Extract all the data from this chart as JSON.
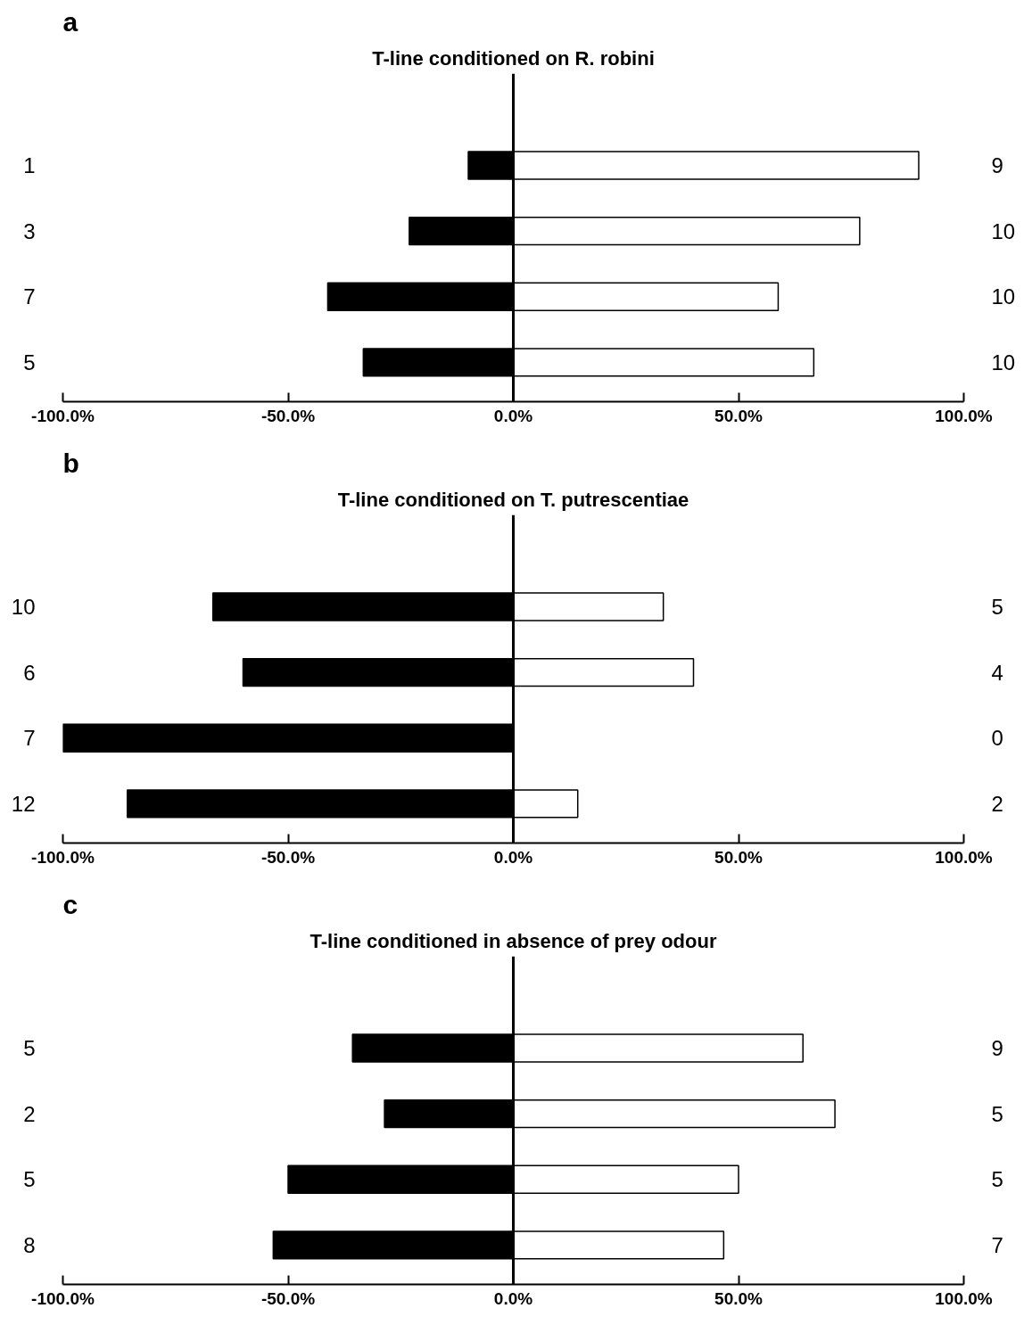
{
  "chart_data": [
    {
      "type": "bar",
      "orientation": "horizontal",
      "stacked": true,
      "title": "T-line conditioned on R. robini",
      "annotations": [
        "a",
        "9",
        "10",
        "10",
        "10"
      ],
      "categories": [
        "1",
        "3",
        "7",
        "5"
      ],
      "series": [
        {
          "color": "#000000",
          "values": [
            -10.0,
            -23.1,
            -41.2,
            -33.3
          ]
        },
        {
          "color": "#ffffff",
          "values": [
            90.0,
            76.9,
            58.8,
            66.7
          ]
        }
      ],
      "xlim": [
        -100,
        100
      ],
      "xticks": [
        {
          "value": -100,
          "label": "-100.0%"
        },
        {
          "value": -50,
          "label": "-50.0%"
        },
        {
          "value": 0,
          "label": "0.0%"
        },
        {
          "value": 50,
          "label": "50.0%"
        },
        {
          "value": 100,
          "label": "100.0%"
        }
      ],
      "ref_lines": [
        {
          "axis": "x",
          "value": 0,
          "color": "#000000"
        }
      ]
    },
    {
      "type": "bar",
      "orientation": "horizontal",
      "stacked": true,
      "title": "T-line conditioned on T. putrescentiae",
      "annotations": [
        "b",
        "5",
        "4",
        "0",
        "2"
      ],
      "categories": [
        "10",
        "6",
        "7",
        "12"
      ],
      "series": [
        {
          "color": "#000000",
          "values": [
            -66.7,
            -60.0,
            -100.0,
            -85.7
          ]
        },
        {
          "color": "#ffffff",
          "values": [
            33.3,
            40.0,
            0.0,
            14.3
          ]
        }
      ],
      "xlim": [
        -100,
        100
      ],
      "xticks": [
        {
          "value": -100,
          "label": "-100.0%"
        },
        {
          "value": -50,
          "label": "-50.0%"
        },
        {
          "value": 0,
          "label": "0.0%"
        },
        {
          "value": 50,
          "label": "50.0%"
        },
        {
          "value": 100,
          "label": "100.0%"
        }
      ],
      "ref_lines": [
        {
          "axis": "x",
          "value": 0,
          "color": "#000000"
        }
      ]
    },
    {
      "type": "bar",
      "orientation": "horizontal",
      "stacked": true,
      "title": "T-line conditioned in absence of prey odour",
      "annotations": [
        "c",
        "9",
        "5",
        "5",
        "7"
      ],
      "categories": [
        "5",
        "2",
        "5",
        "8"
      ],
      "series": [
        {
          "color": "#000000",
          "values": [
            -35.7,
            -28.6,
            -50.0,
            -53.3
          ]
        },
        {
          "color": "#ffffff",
          "values": [
            64.3,
            71.4,
            50.0,
            46.7
          ]
        }
      ],
      "xlim": [
        -100,
        100
      ],
      "xticks": [
        {
          "value": -100,
          "label": "-100.0%"
        },
        {
          "value": -50,
          "label": "-50.0%"
        },
        {
          "value": 0,
          "label": "0.0%"
        },
        {
          "value": 50,
          "label": "50.0%"
        },
        {
          "value": 100,
          "label": "100.0%"
        }
      ],
      "ref_lines": [
        {
          "axis": "x",
          "value": 0,
          "color": "#000000"
        }
      ]
    }
  ]
}
